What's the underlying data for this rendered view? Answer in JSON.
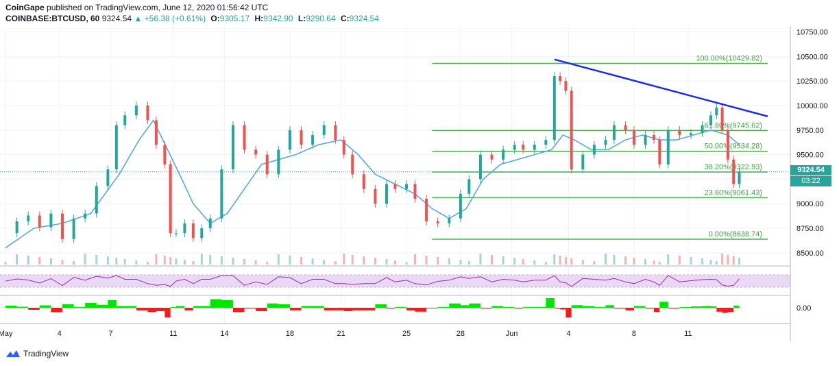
{
  "header": {
    "publisher": "CoinGape",
    "publisher_suffix": "published on TradingView.com, June 12, 2020 01:56:42 UTC",
    "symbol": "COINBASE:BTCUSD, 60",
    "last": "9324.54",
    "change": "+56.38 (+0.61%)",
    "open_label": "O:",
    "open": "9305.17",
    "high_label": "H:",
    "high": "9342.90",
    "low_label": "L:",
    "low": "9290.64",
    "close_label": "C:",
    "close": "9324.54"
  },
  "price_tag": {
    "price": "9324.54",
    "countdown": "03:22"
  },
  "footer": {
    "brand": "TradingView"
  },
  "colors": {
    "up": "#26a69a",
    "down": "#ef5350",
    "ma": "#5aa7e0",
    "trend": "#1e2be0",
    "fib": "#4caf50",
    "rsi": "#9c27b0",
    "rsi_band": "#e9d9f5",
    "hist_pos": "#00e600",
    "hist_neg": "#ff1a1a"
  },
  "chart_data": {
    "type": "line",
    "y_axis_ticks": [
      "10750.00",
      "10500.00",
      "10250.00",
      "10000.00",
      "9750.00",
      "9500.00",
      "9250.00",
      "9000.00",
      "8750.00",
      "8500.00"
    ],
    "y_tick_values": [
      10750,
      10500,
      10250,
      10000,
      9750,
      9500,
      9250,
      9000,
      8750,
      8500
    ],
    "ylim": [
      8380,
      10810
    ],
    "x_axis_ticks": [
      "May",
      "4",
      "7",
      "11",
      "14",
      "18",
      "21",
      "25",
      "28",
      "Jun",
      "4",
      "8",
      "11"
    ],
    "x_tick_index": [
      0,
      19,
      37,
      59,
      77,
      100,
      118,
      141,
      160,
      178,
      198,
      221,
      240
    ],
    "index_range": [
      0,
      268
    ],
    "close_series": [
      {
        "x": 0,
        "y": 8700
      },
      {
        "x": 4,
        "y": 8820
      },
      {
        "x": 8,
        "y": 8880
      },
      {
        "x": 12,
        "y": 8760
      },
      {
        "x": 16,
        "y": 8900
      },
      {
        "x": 20,
        "y": 8640
      },
      {
        "x": 24,
        "y": 8850
      },
      {
        "x": 28,
        "y": 8900
      },
      {
        "x": 32,
        "y": 9180
      },
      {
        "x": 36,
        "y": 9350
      },
      {
        "x": 39,
        "y": 9800
      },
      {
        "x": 42,
        "y": 9900
      },
      {
        "x": 46,
        "y": 10000
      },
      {
        "x": 50,
        "y": 9850
      },
      {
        "x": 53,
        "y": 9600
      },
      {
        "x": 56,
        "y": 9400
      },
      {
        "x": 58,
        "y": 8700
      },
      {
        "x": 60,
        "y": 8700
      },
      {
        "x": 63,
        "y": 8800
      },
      {
        "x": 66,
        "y": 8650
      },
      {
        "x": 69,
        "y": 8750
      },
      {
        "x": 72,
        "y": 8850
      },
      {
        "x": 76,
        "y": 9350
      },
      {
        "x": 80,
        "y": 9800
      },
      {
        "x": 84,
        "y": 9550
      },
      {
        "x": 88,
        "y": 9500
      },
      {
        "x": 92,
        "y": 9300
      },
      {
        "x": 96,
        "y": 9550
      },
      {
        "x": 100,
        "y": 9750
      },
      {
        "x": 104,
        "y": 9600
      },
      {
        "x": 108,
        "y": 9700
      },
      {
        "x": 112,
        "y": 9800
      },
      {
        "x": 116,
        "y": 9650
      },
      {
        "x": 119,
        "y": 9500
      },
      {
        "x": 122,
        "y": 9300
      },
      {
        "x": 126,
        "y": 9150
      },
      {
        "x": 130,
        "y": 9000
      },
      {
        "x": 134,
        "y": 9200
      },
      {
        "x": 137,
        "y": 9150
      },
      {
        "x": 141,
        "y": 9200
      },
      {
        "x": 144,
        "y": 9050
      },
      {
        "x": 148,
        "y": 8820
      },
      {
        "x": 152,
        "y": 8800
      },
      {
        "x": 156,
        "y": 8850
      },
      {
        "x": 160,
        "y": 9100
      },
      {
        "x": 163,
        "y": 9250
      },
      {
        "x": 167,
        "y": 9500
      },
      {
        "x": 171,
        "y": 9450
      },
      {
        "x": 175,
        "y": 9550
      },
      {
        "x": 179,
        "y": 9600
      },
      {
        "x": 182,
        "y": 9550
      },
      {
        "x": 186,
        "y": 9600
      },
      {
        "x": 190,
        "y": 9650
      },
      {
        "x": 193,
        "y": 10300
      },
      {
        "x": 195,
        "y": 10250
      },
      {
        "x": 197,
        "y": 10150
      },
      {
        "x": 199,
        "y": 9350
      },
      {
        "x": 203,
        "y": 9500
      },
      {
        "x": 207,
        "y": 9600
      },
      {
        "x": 211,
        "y": 9650
      },
      {
        "x": 214,
        "y": 9800
      },
      {
        "x": 218,
        "y": 9750
      },
      {
        "x": 221,
        "y": 9600
      },
      {
        "x": 225,
        "y": 9700
      },
      {
        "x": 228,
        "y": 9650
      },
      {
        "x": 230,
        "y": 9400
      },
      {
        "x": 233,
        "y": 9750
      },
      {
        "x": 237,
        "y": 9700
      },
      {
        "x": 241,
        "y": 9720
      },
      {
        "x": 245,
        "y": 9800
      },
      {
        "x": 248,
        "y": 9900
      },
      {
        "x": 250,
        "y": 9980
      },
      {
        "x": 252,
        "y": 9750
      },
      {
        "x": 254,
        "y": 9450
      },
      {
        "x": 256,
        "y": 9200
      },
      {
        "x": 258,
        "y": 9324.54
      }
    ],
    "ma_series": [
      {
        "x": 0,
        "y": 8550
      },
      {
        "x": 10,
        "y": 8750
      },
      {
        "x": 20,
        "y": 8800
      },
      {
        "x": 30,
        "y": 8900
      },
      {
        "x": 40,
        "y": 9300
      },
      {
        "x": 47,
        "y": 9650
      },
      {
        "x": 52,
        "y": 9850
      },
      {
        "x": 57,
        "y": 9550
      },
      {
        "x": 62,
        "y": 9250
      },
      {
        "x": 66,
        "y": 9000
      },
      {
        "x": 72,
        "y": 8800
      },
      {
        "x": 78,
        "y": 8900
      },
      {
        "x": 84,
        "y": 9150
      },
      {
        "x": 90,
        "y": 9400
      },
      {
        "x": 96,
        "y": 9450
      },
      {
        "x": 102,
        "y": 9500
      },
      {
        "x": 110,
        "y": 9600
      },
      {
        "x": 118,
        "y": 9650
      },
      {
        "x": 124,
        "y": 9500
      },
      {
        "x": 130,
        "y": 9300
      },
      {
        "x": 137,
        "y": 9200
      },
      {
        "x": 144,
        "y": 9100
      },
      {
        "x": 150,
        "y": 8950
      },
      {
        "x": 156,
        "y": 8850
      },
      {
        "x": 162,
        "y": 8950
      },
      {
        "x": 168,
        "y": 9250
      },
      {
        "x": 174,
        "y": 9400
      },
      {
        "x": 180,
        "y": 9450
      },
      {
        "x": 186,
        "y": 9500
      },
      {
        "x": 192,
        "y": 9550
      },
      {
        "x": 196,
        "y": 9700
      },
      {
        "x": 200,
        "y": 9650
      },
      {
        "x": 206,
        "y": 9550
      },
      {
        "x": 212,
        "y": 9550
      },
      {
        "x": 218,
        "y": 9650
      },
      {
        "x": 224,
        "y": 9700
      },
      {
        "x": 230,
        "y": 9650
      },
      {
        "x": 236,
        "y": 9650
      },
      {
        "x": 242,
        "y": 9700
      },
      {
        "x": 248,
        "y": 9750
      },
      {
        "x": 254,
        "y": 9700
      },
      {
        "x": 258,
        "y": 9600
      }
    ],
    "trendline": {
      "x1": 193,
      "y1": 10470,
      "x2": 268,
      "y2": 9890
    },
    "fib_levels": [
      {
        "label": "100.00%(10429.82)",
        "price": 10429.82
      },
      {
        "label": "61.80%(9745.62)",
        "price": 9745.62
      },
      {
        "label": "50.00%(9534.28)",
        "price": 9534.28
      },
      {
        "label": "38.20%(9322.93)",
        "price": 9322.93
      },
      {
        "label": "23.60%(9061.43)",
        "price": 9061.43
      },
      {
        "label": "0.00%(8638.74)",
        "price": 8638.74
      }
    ],
    "fib_x_range": [
      150,
      268
    ],
    "last_price": 9324.54,
    "indicator_tick": "0.00"
  }
}
